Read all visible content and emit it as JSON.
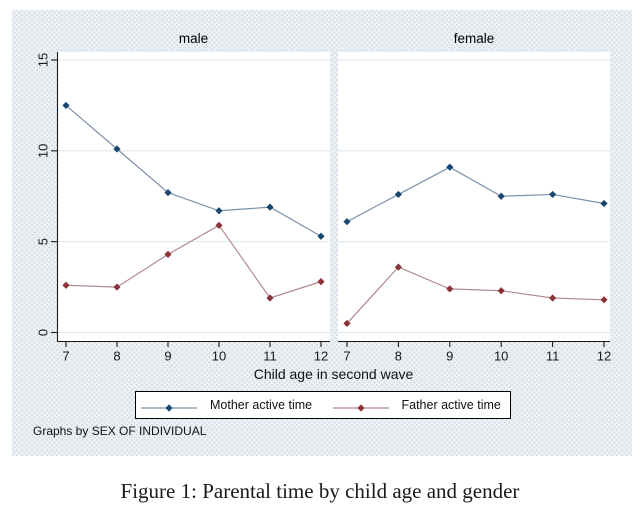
{
  "figure": {
    "caption": "Figure 1: Parental time by child age and gender",
    "note": "Graphs by SEX OF INDIVIDUAL"
  },
  "chart_data": {
    "type": "line",
    "by_variable": "SEX OF INDIVIDUAL",
    "xlabel": "Child age in second wave",
    "ylabel": "",
    "x": [
      7,
      8,
      9,
      10,
      11,
      12
    ],
    "y_ticks": [
      0,
      5,
      10,
      15
    ],
    "ylim": [
      0,
      15.4
    ],
    "grid": true,
    "legend_position": "bottom",
    "panels": [
      {
        "title": "male",
        "series": [
          {
            "name": "Mother active time",
            "values": [
              12.5,
              10.1,
              7.7,
              6.7,
              6.9,
              5.3
            ]
          },
          {
            "name": "Father active time",
            "values": [
              2.6,
              2.5,
              4.3,
              5.9,
              1.9,
              2.8
            ]
          }
        ]
      },
      {
        "title": "female",
        "series": [
          {
            "name": "Mother active time",
            "values": [
              6.1,
              7.6,
              9.1,
              7.5,
              7.6,
              7.1
            ]
          },
          {
            "name": "Father active time",
            "values": [
              0.5,
              3.6,
              2.4,
              2.3,
              1.9,
              1.8
            ]
          }
        ]
      }
    ],
    "styles": {
      "mother": {
        "marker_color": "#1a476f",
        "line_color": "#7b91a9"
      },
      "father": {
        "marker_color": "#8a3339",
        "line_color": "#b18b8f"
      },
      "grid_color": "#dce6ee",
      "axis_color": "#1a1a1a",
      "tick_label_color": "#1a1a1a",
      "plot_bg": "#ffffff",
      "outer_bg": "#edf1f5"
    }
  },
  "legend": {
    "items": [
      {
        "label": "Mother active time",
        "key": "mother"
      },
      {
        "label": "Father active time",
        "key": "father"
      }
    ]
  }
}
